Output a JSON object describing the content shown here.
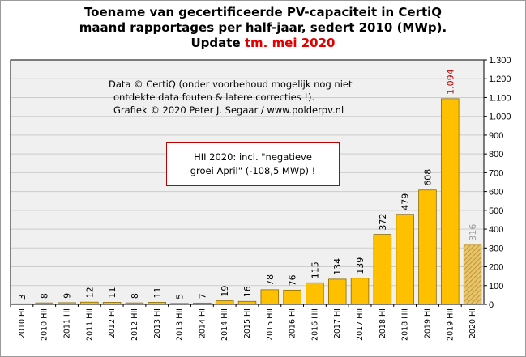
{
  "chart_data": {
    "type": "bar",
    "title_lines": [
      "Toename van gecertificeerde PV-capaciteit in CertiQ",
      "maand rapportages per half-jaar, sedert 2010 (MWp)."
    ],
    "update_label": "Update",
    "update_value": "tm. mei 2020",
    "categories": [
      "2010 HI",
      "2010 HII",
      "2011 HI",
      "2011 HII",
      "2012 HI",
      "2012 HII",
      "2013 HI",
      "2013 HII",
      "2014 HI",
      "2014 HII",
      "2015 HI",
      "2015 HII",
      "2016 HI",
      "2016 HII",
      "2017 HI",
      "2017 HII",
      "2018 HI",
      "2018 HII",
      "2019 HI",
      "2019 HII",
      "2020 HI"
    ],
    "values": [
      3,
      8,
      9,
      12,
      11,
      8,
      11,
      5,
      7,
      19,
      16,
      78,
      76,
      115,
      134,
      139,
      372,
      479,
      608,
      1094,
      316
    ],
    "value_labels": [
      "3",
      "8",
      "9",
      "12",
      "11",
      "8",
      "11",
      "5",
      "7",
      "19",
      "16",
      "78",
      "76",
      "115",
      "134",
      "139",
      "372",
      "479",
      "608",
      "1.094",
      "316"
    ],
    "highlight_index": 19,
    "partial_index": 20,
    "ylim": [
      0,
      1300
    ],
    "yticks": [
      0,
      100,
      200,
      300,
      400,
      500,
      600,
      700,
      800,
      900,
      1000,
      1100,
      1200,
      1300
    ],
    "ytick_labels": [
      "0",
      "100",
      "200",
      "300",
      "400",
      "500",
      "600",
      "700",
      "800",
      "900",
      "1.000",
      "1.100",
      "1.200",
      "1.300"
    ],
    "grid": true,
    "note_lines": [
      "Data © CertiQ (onder voorbehoud mogelijk  nog niet",
      "ontdekte data fouten & latere correcties !).",
      "Grafiek  © 2020 Peter J. Segaar / www.polderpv.nl"
    ],
    "callout_lines": [
      "HII 2020: incl. \"negatieve",
      "groei April\"  (-108,5 MWp) !"
    ],
    "colors": {
      "bar": "#ffc000",
      "bar_edge": "#8a6a00",
      "partial_bar": "#c9a040",
      "highlight_label": "#c00000",
      "partial_label": "#999999",
      "label": "#000000",
      "plot_bg": "#f0f0f0",
      "grid": "#cccccc"
    }
  }
}
